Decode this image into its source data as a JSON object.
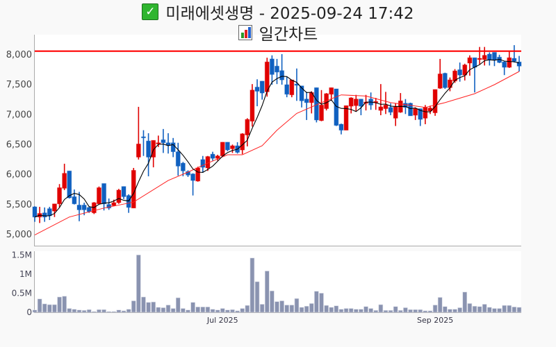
{
  "title": {
    "icon": "check-mark-icon",
    "text": "미래에셋생명 - 2025-09-24 17:42"
  },
  "subtitle": {
    "icon": "bar-chart-icon",
    "text": "일간차트"
  },
  "colors": {
    "up": "#e00000",
    "down": "#1060c0",
    "volume": "#8a93b0",
    "ma_short": "#000000",
    "ma_long": "#ff2020",
    "resistance": "#ff0000"
  },
  "chart_data": {
    "type": "candlestick",
    "title": "미래에셋생명 - 2025-09-24 17:42",
    "price_axis": {
      "ticks": [
        5000,
        5500,
        6000,
        6500,
        7000,
        7500,
        8000
      ],
      "tick_labels": [
        "5,000",
        "5,500",
        "6,000",
        "6,500",
        "7,000",
        "7,500",
        "8,000"
      ],
      "range": [
        4850,
        8280
      ]
    },
    "volume_axis": {
      "ticks": [
        0,
        0.5,
        1,
        1.5
      ],
      "tick_labels": [
        "0",
        "0.5M",
        "1M",
        "1.5M"
      ],
      "range": [
        0,
        1.55
      ],
      "unit": "M"
    },
    "x_labels": [
      {
        "index": 38,
        "label": "Jul 2025"
      },
      {
        "index": 81,
        "label": "Sep 2025"
      }
    ],
    "resistance_line": 8050,
    "ohlc": [
      [
        5450,
        5460,
        5200,
        5280
      ],
      [
        5280,
        5450,
        5180,
        5340
      ],
      [
        5350,
        5440,
        5200,
        5280
      ],
      [
        5420,
        5450,
        5230,
        5300
      ],
      [
        5380,
        5500,
        5280,
        5500
      ],
      [
        5500,
        5830,
        5440,
        5770
      ],
      [
        5760,
        6170,
        5730,
        6010
      ],
      [
        6050,
        6050,
        5590,
        5600
      ],
      [
        5620,
        5740,
        5490,
        5500
      ],
      [
        5480,
        5700,
        5210,
        5400
      ],
      [
        5480,
        5520,
        5310,
        5400
      ],
      [
        5440,
        5450,
        5350,
        5370
      ],
      [
        5350,
        5530,
        5330,
        5520
      ],
      [
        5500,
        5790,
        5490,
        5770
      ],
      [
        5840,
        5840,
        5390,
        5500
      ],
      [
        5490,
        5590,
        5400,
        5430
      ],
      [
        5470,
        5570,
        5460,
        5520
      ],
      [
        5520,
        5750,
        5500,
        5730
      ],
      [
        5790,
        5790,
        5580,
        5620
      ],
      [
        5640,
        5660,
        5350,
        5440
      ],
      [
        5430,
        6100,
        5430,
        6060
      ],
      [
        6280,
        7120,
        6240,
        6500
      ],
      [
        6620,
        6730,
        6300,
        6610
      ],
      [
        6550,
        6680,
        5960,
        6280
      ],
      [
        6280,
        6560,
        6110,
        6560
      ],
      [
        6500,
        6640,
        6450,
        6520
      ],
      [
        6570,
        6750,
        6350,
        6520
      ],
      [
        6520,
        6680,
        6340,
        6480
      ],
      [
        6520,
        6600,
        6280,
        6370
      ],
      [
        6370,
        6520,
        5970,
        6130
      ],
      [
        6180,
        6200,
        5960,
        6050
      ],
      [
        6040,
        6060,
        5950,
        5980
      ],
      [
        6000,
        6010,
        5640,
        5890
      ],
      [
        5880,
        6120,
        5870,
        6100
      ],
      [
        6240,
        6300,
        6020,
        6110
      ],
      [
        6100,
        6300,
        6050,
        6290
      ],
      [
        6330,
        6370,
        6220,
        6260
      ],
      [
        6260,
        6320,
        6220,
        6300
      ],
      [
        6300,
        6530,
        6290,
        6530
      ],
      [
        6530,
        6530,
        6380,
        6400
      ],
      [
        6420,
        6490,
        6350,
        6470
      ],
      [
        6470,
        6530,
        6340,
        6360
      ],
      [
        6400,
        6680,
        6330,
        6670
      ],
      [
        6650,
        6930,
        6460,
        6910
      ],
      [
        6880,
        7500,
        6790,
        7400
      ],
      [
        7450,
        7580,
        7130,
        7380
      ],
      [
        7550,
        7550,
        7240,
        7350
      ],
      [
        7370,
        7940,
        7290,
        7870
      ],
      [
        7920,
        7980,
        7490,
        7660
      ],
      [
        7800,
        7920,
        7500,
        7700
      ],
      [
        7725,
        8000,
        7490,
        7570
      ],
      [
        7490,
        7620,
        7280,
        7330
      ],
      [
        7320,
        7570,
        7280,
        7570
      ],
      [
        7500,
        7760,
        7220,
        7480
      ],
      [
        7470,
        7470,
        7110,
        7220
      ],
      [
        7250,
        7370,
        6900,
        7190
      ],
      [
        7190,
        7380,
        7010,
        7360
      ],
      [
        7440,
        7440,
        6860,
        6900
      ],
      [
        6890,
        7400,
        6880,
        7150
      ],
      [
        7090,
        7350,
        7060,
        7340
      ],
      [
        7330,
        7440,
        7220,
        7440
      ],
      [
        7420,
        7420,
        6800,
        6810
      ],
      [
        6830,
        6840,
        6660,
        6730
      ],
      [
        6730,
        7140,
        6730,
        7140
      ],
      [
        7130,
        7280,
        7010,
        7270
      ],
      [
        7140,
        7320,
        7050,
        7250
      ],
      [
        7250,
        7250,
        6980,
        7130
      ],
      [
        7180,
        7320,
        7060,
        7200
      ],
      [
        7250,
        7360,
        7070,
        7150
      ],
      [
        7190,
        7270,
        7070,
        7210
      ],
      [
        7060,
        7500,
        6980,
        7120
      ],
      [
        7090,
        7370,
        7000,
        7150
      ],
      [
        7110,
        7180,
        6980,
        7030
      ],
      [
        6930,
        7180,
        6800,
        7120
      ],
      [
        7030,
        7350,
        7020,
        7220
      ],
      [
        7180,
        7250,
        7000,
        7110
      ],
      [
        7180,
        7190,
        6970,
        6970
      ],
      [
        6980,
        7110,
        6900,
        7090
      ],
      [
        7090,
        7090,
        6800,
        6910
      ],
      [
        6930,
        7150,
        6830,
        7110
      ],
      [
        7050,
        7140,
        7000,
        7100
      ],
      [
        7020,
        7410,
        6970,
        7410
      ],
      [
        7430,
        7920,
        7420,
        7670
      ],
      [
        7680,
        7690,
        7420,
        7440
      ],
      [
        7440,
        7610,
        7380,
        7570
      ],
      [
        7550,
        7750,
        7520,
        7720
      ],
      [
        7740,
        7860,
        7540,
        7650
      ],
      [
        7650,
        7840,
        7560,
        7820
      ],
      [
        7850,
        7980,
        7640,
        7940
      ],
      [
        7940,
        7940,
        7360,
        7780
      ],
      [
        7910,
        8120,
        7830,
        7930
      ],
      [
        7910,
        8120,
        7810,
        7980
      ],
      [
        8000,
        8030,
        7810,
        7900
      ],
      [
        8030,
        8030,
        7800,
        7900
      ],
      [
        7950,
        7990,
        7850,
        7860
      ],
      [
        7870,
        7880,
        7650,
        7780
      ],
      [
        7780,
        8040,
        7770,
        7940
      ],
      [
        7930,
        8150,
        7860,
        7880
      ],
      [
        7870,
        7970,
        7710,
        7800
      ]
    ],
    "volume_millions": [
      0.06,
      0.35,
      0.22,
      0.2,
      0.2,
      0.4,
      0.42,
      0.1,
      0.08,
      0.06,
      0.05,
      0.07,
      0.02,
      0.07,
      0.07,
      0.02,
      0.02,
      0.06,
      0.04,
      0.08,
      0.3,
      1.5,
      0.4,
      0.26,
      0.27,
      0.13,
      0.12,
      0.19,
      0.1,
      0.38,
      0.1,
      0.06,
      0.26,
      0.14,
      0.14,
      0.14,
      0.08,
      0.06,
      0.1,
      0.06,
      0.07,
      0.04,
      0.1,
      0.18,
      1.42,
      0.8,
      0.21,
      1.08,
      0.56,
      0.28,
      0.3,
      0.19,
      0.19,
      0.36,
      0.13,
      0.16,
      0.23,
      0.55,
      0.5,
      0.18,
      0.13,
      0.17,
      0.08,
      0.1,
      0.1,
      0.08,
      0.08,
      0.15,
      0.1,
      0.05,
      0.2,
      0.05,
      0.05,
      0.15,
      0.05,
      0.12,
      0.07,
      0.07,
      0.07,
      0.04,
      0.04,
      0.19,
      0.39,
      0.15,
      0.08,
      0.08,
      0.12,
      0.53,
      0.23,
      0.16,
      0.15,
      0.21,
      0.13,
      0.1,
      0.1,
      0.18,
      0.18,
      0.14,
      0.13
    ],
    "ma_short_period": 5,
    "ma_long_points": [
      [
        0,
        4980
      ],
      [
        7,
        5280
      ],
      [
        14,
        5430
      ],
      [
        20,
        5530
      ],
      [
        27,
        5890
      ],
      [
        31,
        6030
      ],
      [
        35,
        6180
      ],
      [
        39,
        6320
      ],
      [
        42,
        6320
      ],
      [
        46,
        6470
      ],
      [
        49,
        6730
      ],
      [
        53,
        7010
      ],
      [
        58,
        7190
      ],
      [
        62,
        7320
      ],
      [
        67,
        7300
      ],
      [
        72,
        7190
      ],
      [
        79,
        7110
      ],
      [
        83,
        7190
      ],
      [
        89,
        7340
      ],
      [
        93,
        7490
      ],
      [
        98,
        7710
      ]
    ]
  }
}
